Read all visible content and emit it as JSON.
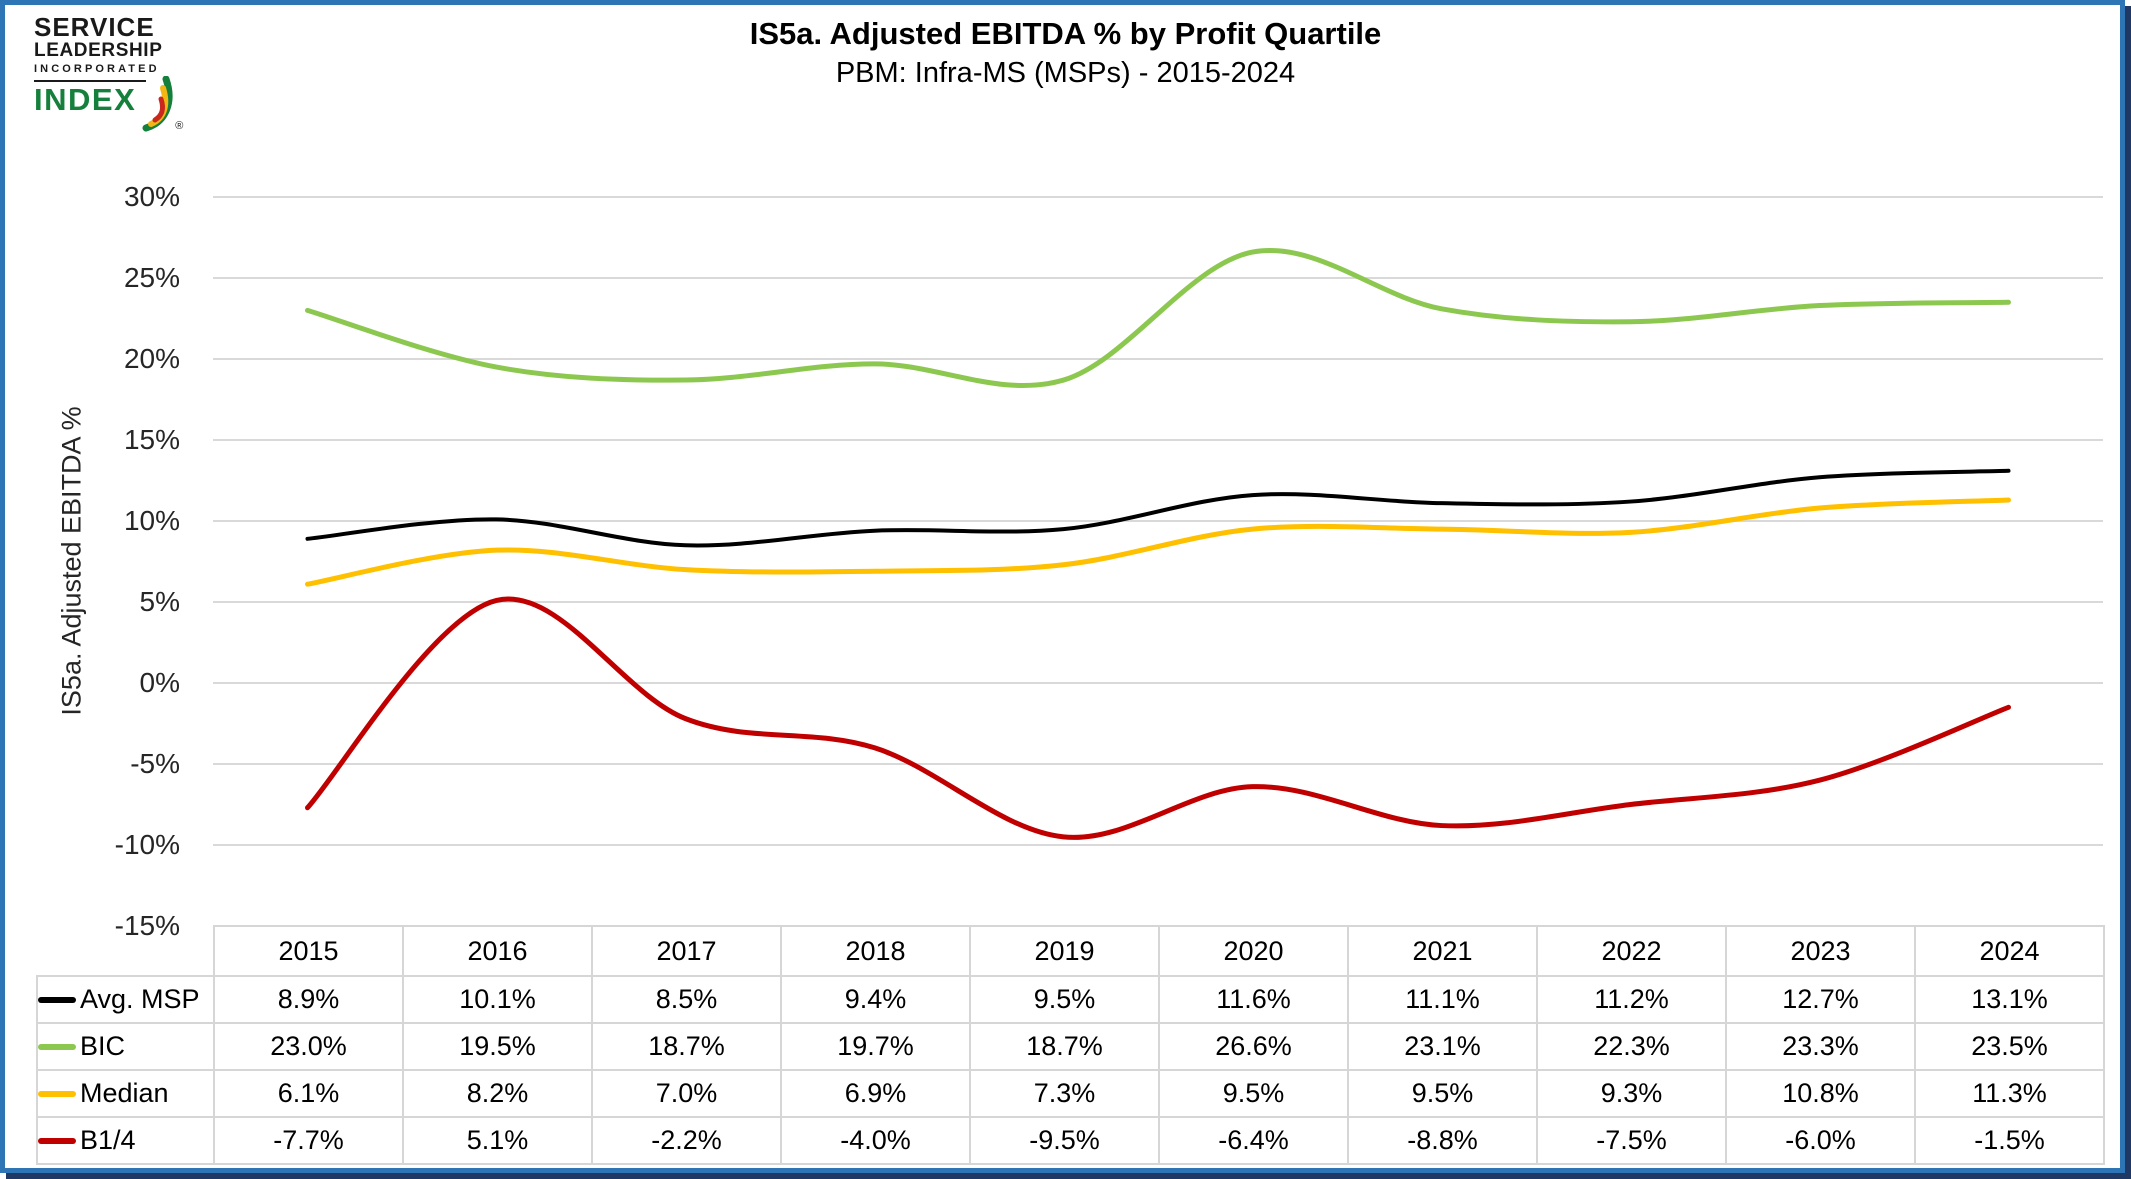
{
  "logo": {
    "line1": "SERVICE",
    "line2": "LEADERSHIP",
    "line3": "INCORPORATED",
    "line4": "INDEX",
    "registered": "®"
  },
  "chart_data": {
    "type": "line",
    "title": "IS5a. Adjusted EBITDA % by Profit Quartile",
    "subtitle": "PBM: Infra-MS (MSPs) - 2015-2024",
    "ylabel": "IS5a. Adjusted EBITDA %",
    "categories": [
      "2015",
      "2016",
      "2017",
      "2018",
      "2019",
      "2020",
      "2021",
      "2022",
      "2023",
      "2024"
    ],
    "series": [
      {
        "name": "Avg. MSP",
        "color": "#000000",
        "stroke_width": 4,
        "values": [
          8.9,
          10.1,
          8.5,
          9.4,
          9.5,
          11.6,
          11.1,
          11.2,
          12.7,
          13.1
        ]
      },
      {
        "name": "BIC",
        "color": "#8CC850",
        "stroke_width": 5,
        "values": [
          23.0,
          19.5,
          18.7,
          19.7,
          18.7,
          26.6,
          23.1,
          22.3,
          23.3,
          23.5
        ]
      },
      {
        "name": "Median",
        "color": "#FFC000",
        "stroke_width": 5,
        "values": [
          6.1,
          8.2,
          7.0,
          6.9,
          7.3,
          9.5,
          9.5,
          9.3,
          10.8,
          11.3
        ]
      },
      {
        "name": "B1/4",
        "color": "#C00000",
        "stroke_width": 5,
        "values": [
          -7.7,
          5.1,
          -2.2,
          -4.0,
          -9.5,
          -6.4,
          -8.8,
          -7.5,
          -6.0,
          -1.5
        ]
      }
    ],
    "ylim": [
      -15,
      30
    ],
    "ytick_step": 5,
    "ytick_suffix": "%",
    "value_suffix": "%",
    "value_decimals": 1,
    "grid": true,
    "smooth": true,
    "legend_position": "data-table-left"
  },
  "colors": {
    "frame_blue": "#2E75B6",
    "frame_shadow": "#1F3864",
    "gridline": "#D9D9D9",
    "table_border": "#D6D6D6",
    "logo_green": "#15803C",
    "logo_yellow": "#F2B715",
    "logo_red": "#C8281E"
  }
}
